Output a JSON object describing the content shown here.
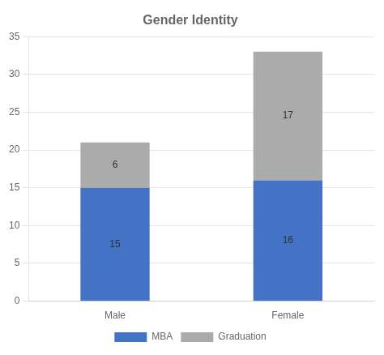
{
  "chart_data": {
    "type": "bar",
    "title": "Gender Identity",
    "categories": [
      "Male",
      "Female"
    ],
    "series": [
      {
        "name": "MBA",
        "color": "#4472C4",
        "values": [
          15,
          16
        ]
      },
      {
        "name": "Graduation",
        "color": "#ABABAB",
        "values": [
          6,
          17
        ]
      }
    ],
    "stacked": true,
    "ylim": [
      0,
      35
    ],
    "yticks": [
      0,
      5,
      10,
      15,
      20,
      25,
      30,
      35
    ],
    "grid": true,
    "legend": "bottom",
    "data_labels": true
  }
}
